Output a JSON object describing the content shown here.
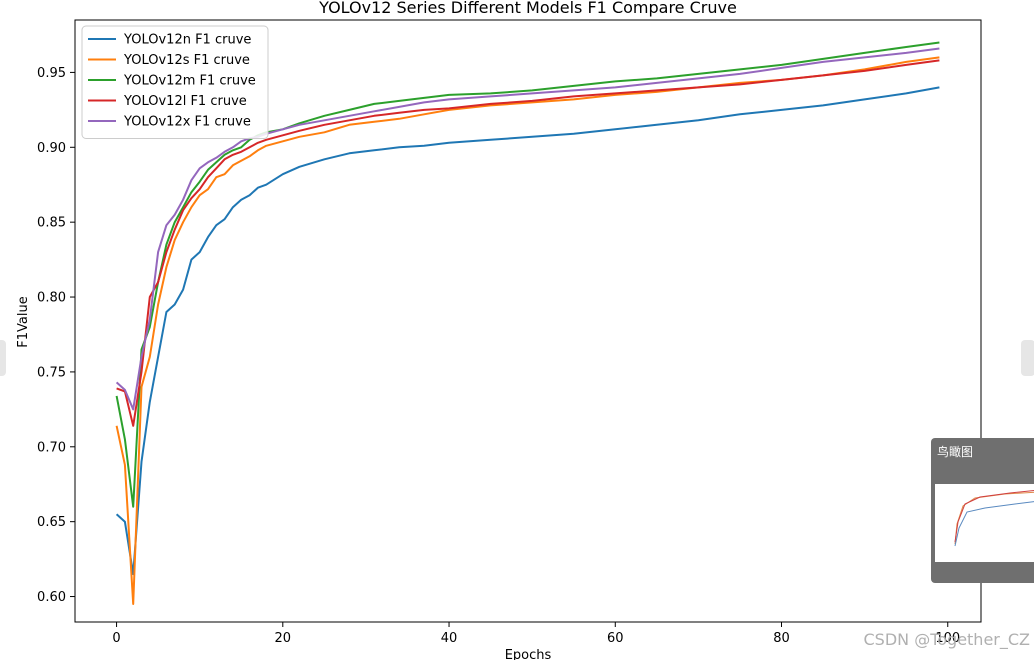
{
  "chart_data": {
    "type": "line",
    "title": "YOLOv12 Series Different Models F1 Compare Cruve",
    "xlabel": "Epochs",
    "ylabel": "F1Value",
    "xlim": [
      -5,
      104
    ],
    "ylim": [
      0.583,
      0.985
    ],
    "xticks": [
      0,
      20,
      40,
      60,
      80,
      100
    ],
    "yticks": [
      0.6,
      0.65,
      0.7,
      0.75,
      0.8,
      0.85,
      0.9,
      0.95
    ],
    "legend_position": "upper-left",
    "series": [
      {
        "name": "YOLOv12n F1 cruve",
        "color": "#1f77b4",
        "points": [
          [
            0,
            0.655
          ],
          [
            1,
            0.65
          ],
          [
            2,
            0.615
          ],
          [
            3,
            0.69
          ],
          [
            4,
            0.73
          ],
          [
            5,
            0.76
          ],
          [
            6,
            0.79
          ],
          [
            7,
            0.795
          ],
          [
            8,
            0.805
          ],
          [
            9,
            0.825
          ],
          [
            10,
            0.83
          ],
          [
            11,
            0.84
          ],
          [
            12,
            0.848
          ],
          [
            13,
            0.852
          ],
          [
            14,
            0.86
          ],
          [
            15,
            0.865
          ],
          [
            16,
            0.868
          ],
          [
            17,
            0.873
          ],
          [
            18,
            0.875
          ],
          [
            20,
            0.882
          ],
          [
            22,
            0.887
          ],
          [
            25,
            0.892
          ],
          [
            28,
            0.896
          ],
          [
            31,
            0.898
          ],
          [
            34,
            0.9
          ],
          [
            37,
            0.901
          ],
          [
            40,
            0.903
          ],
          [
            45,
            0.905
          ],
          [
            50,
            0.907
          ],
          [
            55,
            0.909
          ],
          [
            60,
            0.912
          ],
          [
            65,
            0.915
          ],
          [
            70,
            0.918
          ],
          [
            75,
            0.922
          ],
          [
            80,
            0.925
          ],
          [
            85,
            0.928
          ],
          [
            90,
            0.932
          ],
          [
            95,
            0.936
          ],
          [
            99,
            0.94
          ]
        ]
      },
      {
        "name": "YOLOv12s F1 cruve",
        "color": "#ff7f0e",
        "points": [
          [
            0,
            0.714
          ],
          [
            1,
            0.688
          ],
          [
            2,
            0.595
          ],
          [
            3,
            0.74
          ],
          [
            4,
            0.76
          ],
          [
            5,
            0.795
          ],
          [
            6,
            0.82
          ],
          [
            7,
            0.838
          ],
          [
            8,
            0.85
          ],
          [
            9,
            0.86
          ],
          [
            10,
            0.868
          ],
          [
            11,
            0.872
          ],
          [
            12,
            0.88
          ],
          [
            13,
            0.882
          ],
          [
            14,
            0.888
          ],
          [
            15,
            0.891
          ],
          [
            16,
            0.894
          ],
          [
            17,
            0.898
          ],
          [
            18,
            0.901
          ],
          [
            20,
            0.904
          ],
          [
            22,
            0.907
          ],
          [
            25,
            0.91
          ],
          [
            28,
            0.915
          ],
          [
            31,
            0.917
          ],
          [
            34,
            0.919
          ],
          [
            37,
            0.922
          ],
          [
            40,
            0.925
          ],
          [
            45,
            0.928
          ],
          [
            50,
            0.93
          ],
          [
            55,
            0.932
          ],
          [
            60,
            0.935
          ],
          [
            65,
            0.937
          ],
          [
            70,
            0.94
          ],
          [
            75,
            0.943
          ],
          [
            80,
            0.945
          ],
          [
            85,
            0.948
          ],
          [
            90,
            0.952
          ],
          [
            95,
            0.957
          ],
          [
            99,
            0.96
          ]
        ]
      },
      {
        "name": "YOLOv12m F1 cruve",
        "color": "#2ca02c",
        "points": [
          [
            0,
            0.734
          ],
          [
            1,
            0.705
          ],
          [
            2,
            0.66
          ],
          [
            3,
            0.765
          ],
          [
            4,
            0.78
          ],
          [
            5,
            0.81
          ],
          [
            6,
            0.835
          ],
          [
            7,
            0.85
          ],
          [
            8,
            0.86
          ],
          [
            9,
            0.87
          ],
          [
            10,
            0.877
          ],
          [
            11,
            0.885
          ],
          [
            12,
            0.89
          ],
          [
            13,
            0.895
          ],
          [
            14,
            0.898
          ],
          [
            15,
            0.9
          ],
          [
            16,
            0.905
          ],
          [
            17,
            0.908
          ],
          [
            18,
            0.91
          ],
          [
            20,
            0.912
          ],
          [
            22,
            0.916
          ],
          [
            25,
            0.921
          ],
          [
            28,
            0.925
          ],
          [
            31,
            0.929
          ],
          [
            34,
            0.931
          ],
          [
            37,
            0.933
          ],
          [
            40,
            0.935
          ],
          [
            45,
            0.936
          ],
          [
            50,
            0.938
          ],
          [
            55,
            0.941
          ],
          [
            60,
            0.944
          ],
          [
            65,
            0.946
          ],
          [
            70,
            0.949
          ],
          [
            75,
            0.952
          ],
          [
            80,
            0.955
          ],
          [
            85,
            0.959
          ],
          [
            90,
            0.963
          ],
          [
            95,
            0.967
          ],
          [
            99,
            0.97
          ]
        ]
      },
      {
        "name": "YOLOv12l F1 cruve",
        "color": "#d62728",
        "points": [
          [
            0,
            0.739
          ],
          [
            1,
            0.737
          ],
          [
            2,
            0.714
          ],
          [
            3,
            0.75
          ],
          [
            4,
            0.8
          ],
          [
            5,
            0.81
          ],
          [
            6,
            0.83
          ],
          [
            7,
            0.845
          ],
          [
            8,
            0.858
          ],
          [
            9,
            0.866
          ],
          [
            10,
            0.872
          ],
          [
            11,
            0.88
          ],
          [
            12,
            0.886
          ],
          [
            13,
            0.892
          ],
          [
            14,
            0.895
          ],
          [
            15,
            0.897
          ],
          [
            16,
            0.9
          ],
          [
            17,
            0.903
          ],
          [
            18,
            0.905
          ],
          [
            20,
            0.908
          ],
          [
            22,
            0.911
          ],
          [
            25,
            0.915
          ],
          [
            28,
            0.918
          ],
          [
            31,
            0.921
          ],
          [
            34,
            0.923
          ],
          [
            37,
            0.925
          ],
          [
            40,
            0.926
          ],
          [
            45,
            0.929
          ],
          [
            50,
            0.931
          ],
          [
            55,
            0.934
          ],
          [
            60,
            0.936
          ],
          [
            65,
            0.938
          ],
          [
            70,
            0.94
          ],
          [
            75,
            0.942
          ],
          [
            80,
            0.945
          ],
          [
            85,
            0.948
          ],
          [
            90,
            0.951
          ],
          [
            95,
            0.955
          ],
          [
            99,
            0.958
          ]
        ]
      },
      {
        "name": "YOLOv12x F1 cruve",
        "color": "#9467bd",
        "points": [
          [
            0,
            0.743
          ],
          [
            1,
            0.738
          ],
          [
            2,
            0.725
          ],
          [
            3,
            0.76
          ],
          [
            4,
            0.785
          ],
          [
            5,
            0.83
          ],
          [
            6,
            0.848
          ],
          [
            7,
            0.855
          ],
          [
            8,
            0.865
          ],
          [
            9,
            0.878
          ],
          [
            10,
            0.886
          ],
          [
            11,
            0.89
          ],
          [
            12,
            0.893
          ],
          [
            13,
            0.897
          ],
          [
            14,
            0.9
          ],
          [
            15,
            0.904
          ],
          [
            16,
            0.906
          ],
          [
            17,
            0.907
          ],
          [
            18,
            0.909
          ],
          [
            20,
            0.912
          ],
          [
            22,
            0.915
          ],
          [
            25,
            0.918
          ],
          [
            28,
            0.921
          ],
          [
            31,
            0.924
          ],
          [
            34,
            0.927
          ],
          [
            37,
            0.93
          ],
          [
            40,
            0.932
          ],
          [
            45,
            0.934
          ],
          [
            50,
            0.936
          ],
          [
            55,
            0.938
          ],
          [
            60,
            0.94
          ],
          [
            65,
            0.943
          ],
          [
            70,
            0.946
          ],
          [
            75,
            0.949
          ],
          [
            80,
            0.953
          ],
          [
            85,
            0.957
          ],
          [
            90,
            0.96
          ],
          [
            95,
            0.963
          ],
          [
            99,
            0.966
          ]
        ]
      }
    ]
  },
  "ui": {
    "birdseye_label": "鸟瞰图",
    "watermark": "CSDN @Together_CZ"
  }
}
